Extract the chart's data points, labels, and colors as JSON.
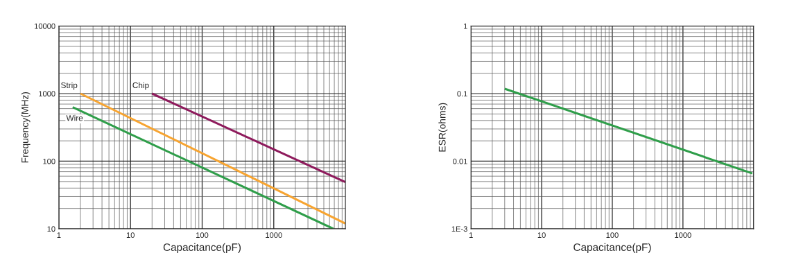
{
  "chart_data": [
    {
      "type": "line",
      "xlabel": "Capacitance(pF)",
      "ylabel": "Frequency(MHz)",
      "log": "xy",
      "grid": true,
      "legend": false,
      "xlim": [
        1,
        10000
      ],
      "xticks": [
        1,
        10,
        100,
        1000
      ],
      "ylim": [
        10,
        10000
      ],
      "yticks": [
        10,
        100,
        1000,
        10000
      ],
      "series": [
        {
          "name": "Strip",
          "color": "#f7a430",
          "x": [
            2,
            10000
          ],
          "values": [
            1000,
            12
          ]
        },
        {
          "name": "Chip",
          "color": "#8e1a5c",
          "x": [
            20,
            10000
          ],
          "values": [
            1000,
            49
          ]
        },
        {
          "name": "Wire",
          "color": "#2f9e4a",
          "x": [
            1.56,
            6800
          ],
          "values": [
            630,
            10
          ]
        }
      ]
    },
    {
      "type": "line",
      "xlabel": "Capacitance(pF)",
      "ylabel": "ESR(ohms)",
      "log": "xy",
      "grid": true,
      "legend": false,
      "xlim": [
        1,
        10000
      ],
      "xticks": [
        1,
        10,
        100,
        1000
      ],
      "ylim": [
        0.001,
        1
      ],
      "yticks": [
        {
          "value": 0.001,
          "label": "1E-3"
        },
        0.01,
        0.1,
        1
      ],
      "series": [
        {
          "color": "#2f9e4a",
          "x": [
            3,
            9600
          ],
          "values": [
            0.118,
            0.0066
          ]
        }
      ]
    }
  ]
}
